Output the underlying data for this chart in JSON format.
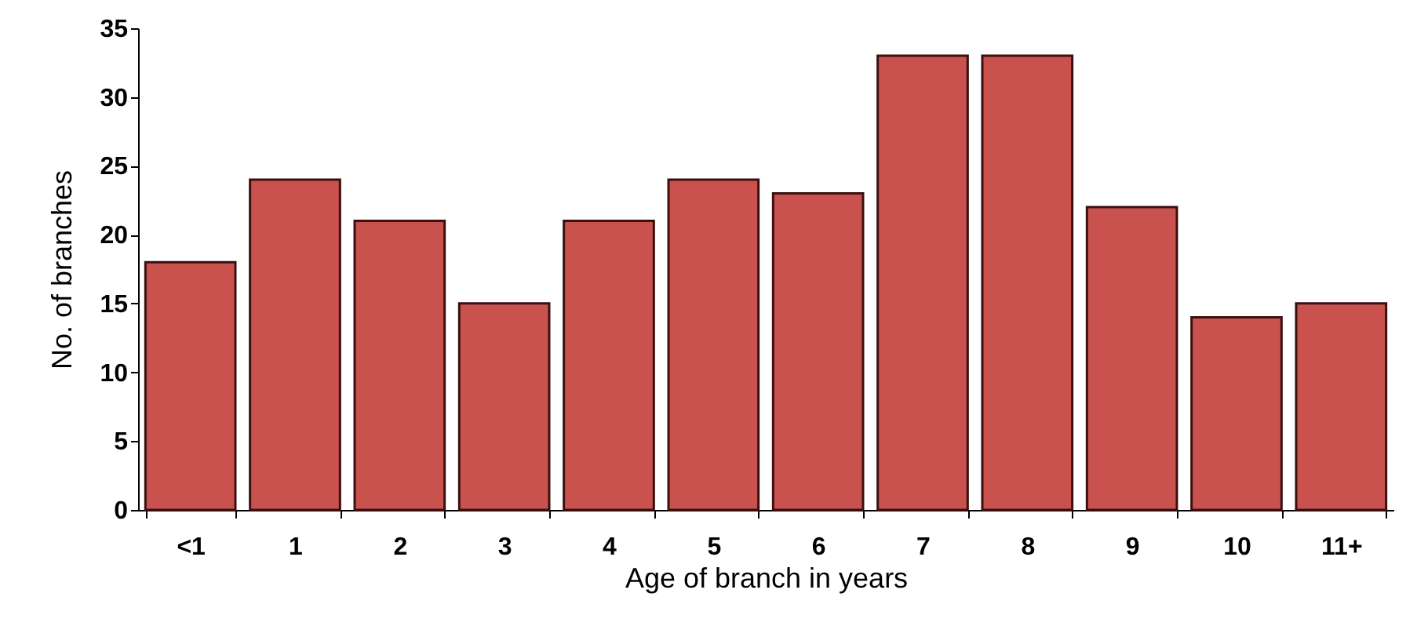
{
  "chart_data": {
    "type": "bar",
    "xlabel": "Age of branch in years",
    "ylabel": "No. of branches",
    "categories": [
      "<1",
      "1",
      "2",
      "3",
      "4",
      "5",
      "6",
      "7",
      "8",
      "9",
      "10",
      "11+"
    ],
    "values": [
      18,
      24,
      21,
      15,
      21,
      24,
      23,
      33,
      33,
      22,
      14,
      15
    ],
    "color": "#c9524f",
    "ylim": [
      0,
      35
    ],
    "yticks": [
      0,
      5,
      10,
      15,
      20,
      25,
      30,
      35
    ],
    "grid": false
  }
}
